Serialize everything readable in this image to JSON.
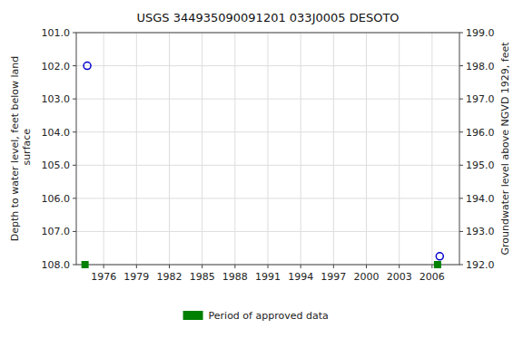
{
  "chart_data": {
    "type": "scatter",
    "title": "USGS 344935090091201 033J0005  DESOTO",
    "ylabel": "Depth to water level, feet below land\n surface",
    "y2label": "Groundwater level above NGVD 1929, feet",
    "xlim": [
      1973.5,
      2008.5
    ],
    "xticks": [
      1976,
      1979,
      1982,
      1985,
      1988,
      1991,
      1994,
      1997,
      2000,
      2003,
      2006
    ],
    "ylim": [
      108.0,
      101.0
    ],
    "yticks": [
      {
        "value": 101.0,
        "label": "101.0"
      },
      {
        "value": 102.0,
        "label": "102.0"
      },
      {
        "value": 103.0,
        "label": "103.0"
      },
      {
        "value": 104.0,
        "label": "104.0"
      },
      {
        "value": 105.0,
        "label": "105.0"
      },
      {
        "value": 106.0,
        "label": "106.0"
      },
      {
        "value": 107.0,
        "label": "107.0"
      },
      {
        "value": 108.0,
        "label": "108.0"
      }
    ],
    "y2lim": [
      192.0,
      199.0
    ],
    "y2ticks": [
      {
        "value": 199.0,
        "label": "199.0"
      },
      {
        "value": 198.0,
        "label": "198.0"
      },
      {
        "value": 197.0,
        "label": "197.0"
      },
      {
        "value": 196.0,
        "label": "196.0"
      },
      {
        "value": 195.0,
        "label": "195.0"
      },
      {
        "value": 194.0,
        "label": "194.0"
      },
      {
        "value": 193.0,
        "label": "193.0"
      },
      {
        "value": 192.0,
        "label": "192.0"
      }
    ],
    "grid": true,
    "legend": "bottom",
    "series": [
      {
        "color": "#0000cc",
        "marker": "circle",
        "x": [
          1974.5,
          2006.7
        ],
        "values": [
          102.0,
          107.75
        ]
      },
      {
        "name": "Period of approved data",
        "color": "#008000",
        "marker": "square",
        "x": [
          1974.3,
          2006.5
        ],
        "values": [
          108.0,
          108.0
        ]
      }
    ]
  }
}
